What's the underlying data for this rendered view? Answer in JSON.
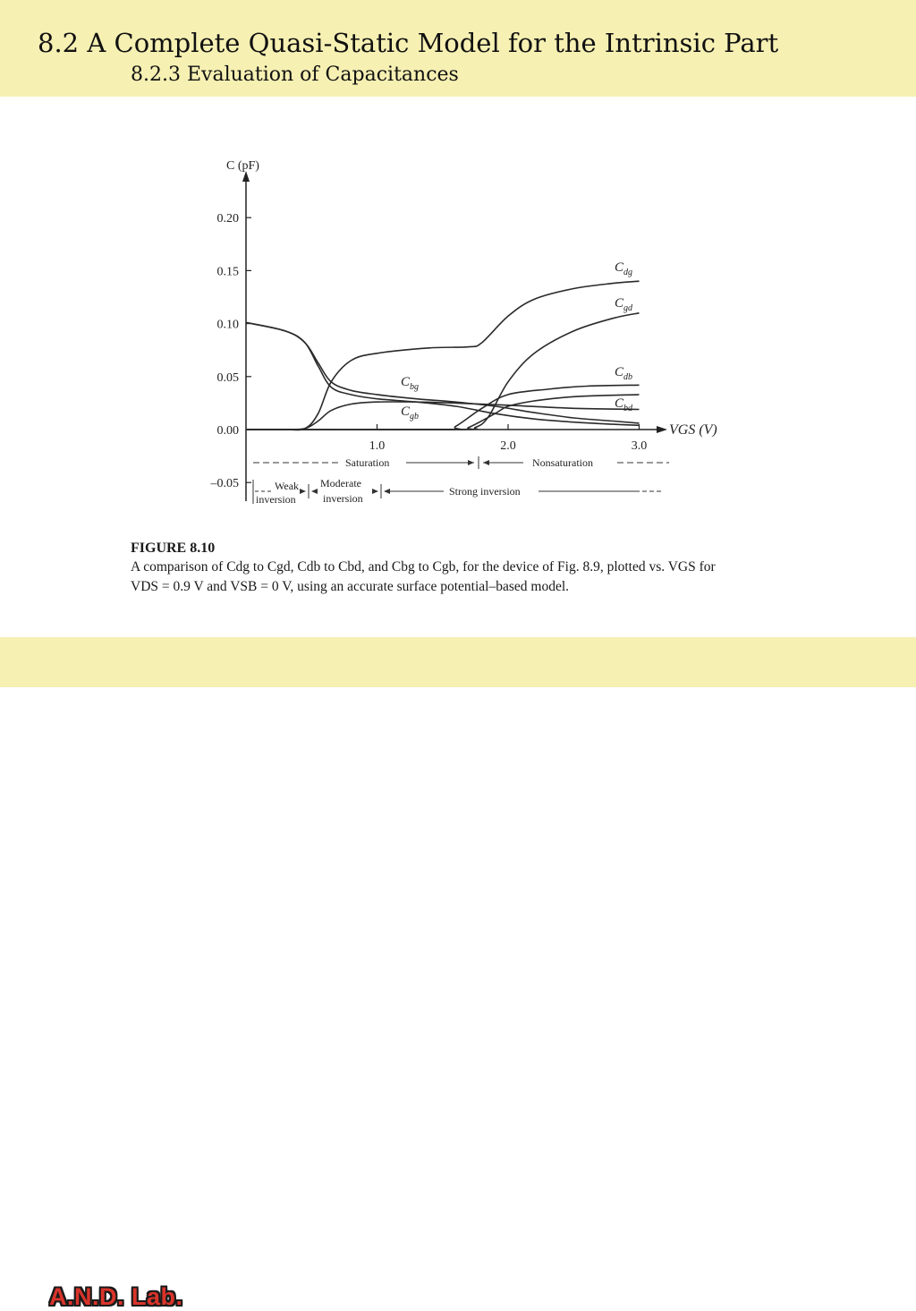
{
  "header": {
    "title": "8.2 A Complete Quasi-Static Model for the Intrinsic Part",
    "subtitle": "8.2.3 Evaluation of Capacitances"
  },
  "footer": {
    "lab": "A.N.D. Lab."
  },
  "figure": {
    "label": "FIGURE 8.10",
    "caption_line1": "A comparison of Cdg to Cgd, Cdb to Cbd, and Cbg to Cgb, for the device of Fig. 8.9, plotted vs. VGS for",
    "caption_line2": "VDS = 0.9 V and VSB = 0 V, using an accurate surface potential–based model."
  },
  "chart_data": {
    "type": "line",
    "ylabel": "C (pF)",
    "xlabel": "VGS (V)",
    "xlim": [
      0,
      3.0
    ],
    "ylim": [
      -0.05,
      0.2
    ],
    "x_ticks": [
      "1.0",
      "2.0",
      "3.0"
    ],
    "y_ticks": [
      "0.20",
      "0.15",
      "0.10",
      "0.05",
      "0.00",
      "–0.05"
    ],
    "grid": false,
    "series": [
      {
        "name": "Cdg",
        "x": [
          0,
          0.3,
          0.45,
          0.55,
          0.65,
          0.8,
          1.0,
          1.4,
          1.7,
          1.8,
          2.0,
          2.2,
          2.5,
          2.8,
          3.0
        ],
        "y": [
          0,
          0,
          0.001,
          0.015,
          0.045,
          0.065,
          0.072,
          0.077,
          0.078,
          0.082,
          0.107,
          0.123,
          0.133,
          0.138,
          0.14
        ]
      },
      {
        "name": "Cgd",
        "x": [
          0,
          1.6,
          1.75,
          1.85,
          2.0,
          2.2,
          2.5,
          2.8,
          3.0
        ],
        "y": [
          0,
          0,
          0.002,
          0.012,
          0.045,
          0.072,
          0.093,
          0.105,
          0.11
        ]
      },
      {
        "name": "Cdb",
        "x": [
          0,
          1.5,
          1.6,
          1.8,
          2.0,
          2.3,
          2.6,
          3.0
        ],
        "y": [
          0,
          0,
          0.003,
          0.02,
          0.033,
          0.038,
          0.041,
          0.042
        ]
      },
      {
        "name": "Cbd",
        "x": [
          0,
          1.6,
          1.7,
          1.9,
          2.0,
          2.2,
          2.5,
          3.0
        ],
        "y": [
          0,
          0,
          0.002,
          0.015,
          0.022,
          0.027,
          0.031,
          0.033
        ]
      },
      {
        "name": "Cbg",
        "x": [
          0,
          0.3,
          0.45,
          0.55,
          0.65,
          0.8,
          1.0,
          1.3,
          1.6,
          1.9,
          2.2,
          2.5,
          2.8,
          3.0
        ],
        "y": [
          0.101,
          0.093,
          0.082,
          0.063,
          0.045,
          0.037,
          0.033,
          0.029,
          0.026,
          0.022,
          0.016,
          0.011,
          0.008,
          0.006
        ]
      },
      {
        "name": "Cgb",
        "x": [
          0,
          0.3,
          0.45,
          0.55,
          0.65,
          0.8,
          1.0,
          1.3,
          1.6,
          1.9,
          2.2,
          2.5,
          2.8,
          3.0
        ],
        "y": [
          0.101,
          0.093,
          0.082,
          0.06,
          0.04,
          0.033,
          0.029,
          0.026,
          0.022,
          0.015,
          0.01,
          0.007,
          0.005,
          0.004
        ]
      },
      {
        "name": "",
        "x": [
          0,
          0.3,
          0.45,
          0.55,
          0.65,
          0.8,
          1.0,
          1.3,
          1.6,
          2.0,
          2.5,
          3.0
        ],
        "y": [
          0,
          0,
          0.001,
          0.008,
          0.018,
          0.024,
          0.026,
          0.026,
          0.025,
          0.023,
          0.02,
          0.019
        ]
      }
    ],
    "annotations": {
      "saturation": "Saturation",
      "nonsaturation": "Nonsaturation",
      "weak": "Weak",
      "inversion": "inversion",
      "moderate": "Moderate",
      "moderate_inversion": "inversion",
      "strong": "Strong inversion"
    }
  }
}
